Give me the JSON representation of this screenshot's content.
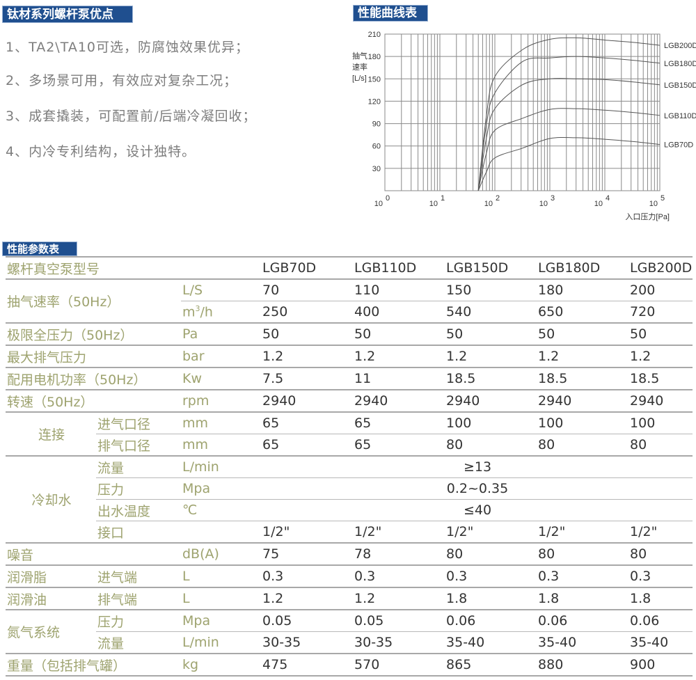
{
  "advantages": {
    "title": "钛材系列螺杆泵优点",
    "items": [
      "1、TA2\\TA10可选，防腐蚀效果优异；",
      "2、多场景可用，有效应对复杂工况；",
      "3、成套撬装，可配置前/后端冷凝回收；",
      "4、内冷专利结构，设计独特。"
    ]
  },
  "chart_section": {
    "title": "性能曲线表"
  },
  "chart_data": {
    "type": "line",
    "ylabel": [
      "抽气",
      "速率",
      "[L/s]"
    ],
    "xlabel": "入口压力[Pa]",
    "xscale": "log",
    "xlim": [
      1,
      100000
    ],
    "ylim": [
      0,
      210
    ],
    "yticks": [
      30,
      60,
      90,
      120,
      150,
      180,
      210
    ],
    "xticks": [
      {
        "base": "10",
        "exp": "0"
      },
      {
        "base": "10",
        "exp": "1"
      },
      {
        "base": "10",
        "exp": "2"
      },
      {
        "base": "10",
        "exp": "3"
      },
      {
        "base": "10",
        "exp": "4"
      },
      {
        "base": "10",
        "exp": "5"
      }
    ],
    "grid": true,
    "legend": "right-end labels",
    "x": [
      50,
      70,
      100,
      316,
      1000,
      3162,
      10000,
      31623,
      100000
    ],
    "series": [
      {
        "name": "LGB200D",
        "values": [
          0,
          100,
          153,
          189,
          203,
          205,
          202,
          199,
          195
        ]
      },
      {
        "name": "LGB180D",
        "values": [
          0,
          88,
          131,
          173,
          178,
          180,
          178,
          175,
          171
        ]
      },
      {
        "name": "LGB150D",
        "values": [
          0,
          70,
          110,
          142,
          150,
          150,
          149,
          146,
          142
        ]
      },
      {
        "name": "LGB110D",
        "values": [
          0,
          50,
          81,
          97,
          109,
          110,
          108,
          105,
          101
        ]
      },
      {
        "name": "LGB70D",
        "values": [
          0,
          25,
          44,
          57,
          70,
          71,
          69,
          66,
          62
        ]
      }
    ],
    "colors": {
      "curve": "#555555",
      "grid": "#8a8a8a"
    }
  },
  "table": {
    "title": "性能参数表",
    "model_label": "螺杆真空泵型号",
    "models": [
      "LGB70D",
      "LGB110D",
      "LGB150D",
      "LGB180D",
      "LGB200D"
    ],
    "speed": {
      "label": "抽气速率（50Hz）",
      "unit1": "L/S",
      "vals1": [
        "70",
        "110",
        "150",
        "180",
        "200"
      ],
      "unit2_base": "m",
      "unit2_sup": "3",
      "unit2_rest": "/h",
      "vals2": [
        "250",
        "400",
        "540",
        "650",
        "720"
      ]
    },
    "rows1": [
      {
        "label": "极限全压力（50Hz）",
        "unit": "Pa",
        "vals": [
          "50",
          "50",
          "50",
          "50",
          "50"
        ]
      },
      {
        "label": "最大排气压力",
        "unit": "bar",
        "vals": [
          "1.2",
          "1.2",
          "1.2",
          "1.2",
          "1.2"
        ]
      },
      {
        "label": "配用电机功率（50Hz）",
        "unit": "Kw",
        "vals": [
          "7.5",
          "11",
          "18.5",
          "18.5",
          "18.5"
        ]
      },
      {
        "label": "转速（50Hz）",
        "unit": "rpm",
        "vals": [
          "2940",
          "2940",
          "2940",
          "2940",
          "2940"
        ]
      }
    ],
    "connect": {
      "label": "连接",
      "inlet": {
        "label": "进气口径",
        "unit": "mm",
        "vals": [
          "65",
          "65",
          "100",
          "100",
          "100"
        ]
      },
      "outlet": {
        "label": "排气口径",
        "unit": "mm",
        "vals": [
          "65",
          "65",
          "80",
          "80",
          "80"
        ]
      }
    },
    "cooling": {
      "label": "冷却水",
      "flow": {
        "label": "流量",
        "unit": "L/min",
        "val": "≥13"
      },
      "pressure": {
        "label": "压力",
        "unit": "Mpa",
        "val": "0.2~0.35"
      },
      "temp": {
        "label": "出水温度",
        "unit": "℃",
        "val": "≤40"
      },
      "port": {
        "label": "接口",
        "vals": [
          "1/2\"",
          "1/2\"",
          "1/2\"",
          "1/2\"",
          "1/2\""
        ]
      }
    },
    "noise": {
      "label": "噪音",
      "unit": "dB(A)",
      "vals": [
        "75",
        "78",
        "80",
        "80",
        "80"
      ]
    },
    "grease": {
      "label": "润滑脂",
      "sub": "进气端",
      "unit": "L",
      "vals": [
        "0.3",
        "0.3",
        "0.3",
        "0.3",
        "0.3"
      ]
    },
    "oil": {
      "label": "润滑油",
      "sub": "排气端",
      "unit": "L",
      "vals": [
        "1.2",
        "1.2",
        "1.8",
        "1.8",
        "1.8"
      ]
    },
    "nitrogen": {
      "label": "氮气系统",
      "pressure": {
        "label": "压力",
        "unit": "Mpa",
        "vals": [
          "0.05",
          "0.05",
          "0.06",
          "0.06",
          "0.06"
        ]
      },
      "flow": {
        "label": "流量",
        "unit": "L/min",
        "vals": [
          "30-35",
          "30-35",
          "35-40",
          "35-40",
          "35-40"
        ]
      }
    },
    "weight": {
      "label": "重量（包括排气罐）",
      "unit": "kg",
      "vals": [
        "475",
        "570",
        "865",
        "880",
        "900"
      ]
    }
  }
}
